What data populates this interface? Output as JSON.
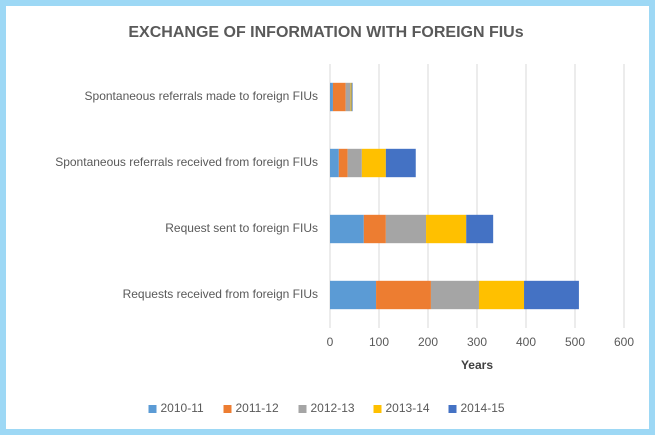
{
  "chart_data": {
    "type": "stacked_barh",
    "title": "EXCHANGE OF INFORMATION WITH FOREIGN FIUs",
    "categories": [
      "Spontaneous referrals made to foreign FIUs",
      "Spontaneous referrals received from foreign FIUs",
      "Request sent to foreign FIUs",
      "Requests received from foreign FIUs"
    ],
    "series": [
      {
        "name": "2010-11",
        "color": "#5b9bd5",
        "values": [
          6,
          18,
          69,
          94
        ]
      },
      {
        "name": "2011-12",
        "color": "#ed7d31",
        "values": [
          26,
          18,
          45,
          112
        ]
      },
      {
        "name": "2012-13",
        "color": "#a5a5a5",
        "values": [
          10,
          29,
          82,
          98
        ]
      },
      {
        "name": "2013-14",
        "color": "#ffc000",
        "values": [
          2,
          49,
          82,
          92
        ]
      },
      {
        "name": "2014-15",
        "color": "#4472c4",
        "values": [
          2,
          61,
          55,
          112
        ]
      }
    ],
    "xlabel": "Years",
    "xlim": [
      0,
      600
    ],
    "xticks": [
      0,
      100,
      200,
      300,
      400,
      500,
      600
    ],
    "grid": true,
    "legend": "bottom"
  }
}
